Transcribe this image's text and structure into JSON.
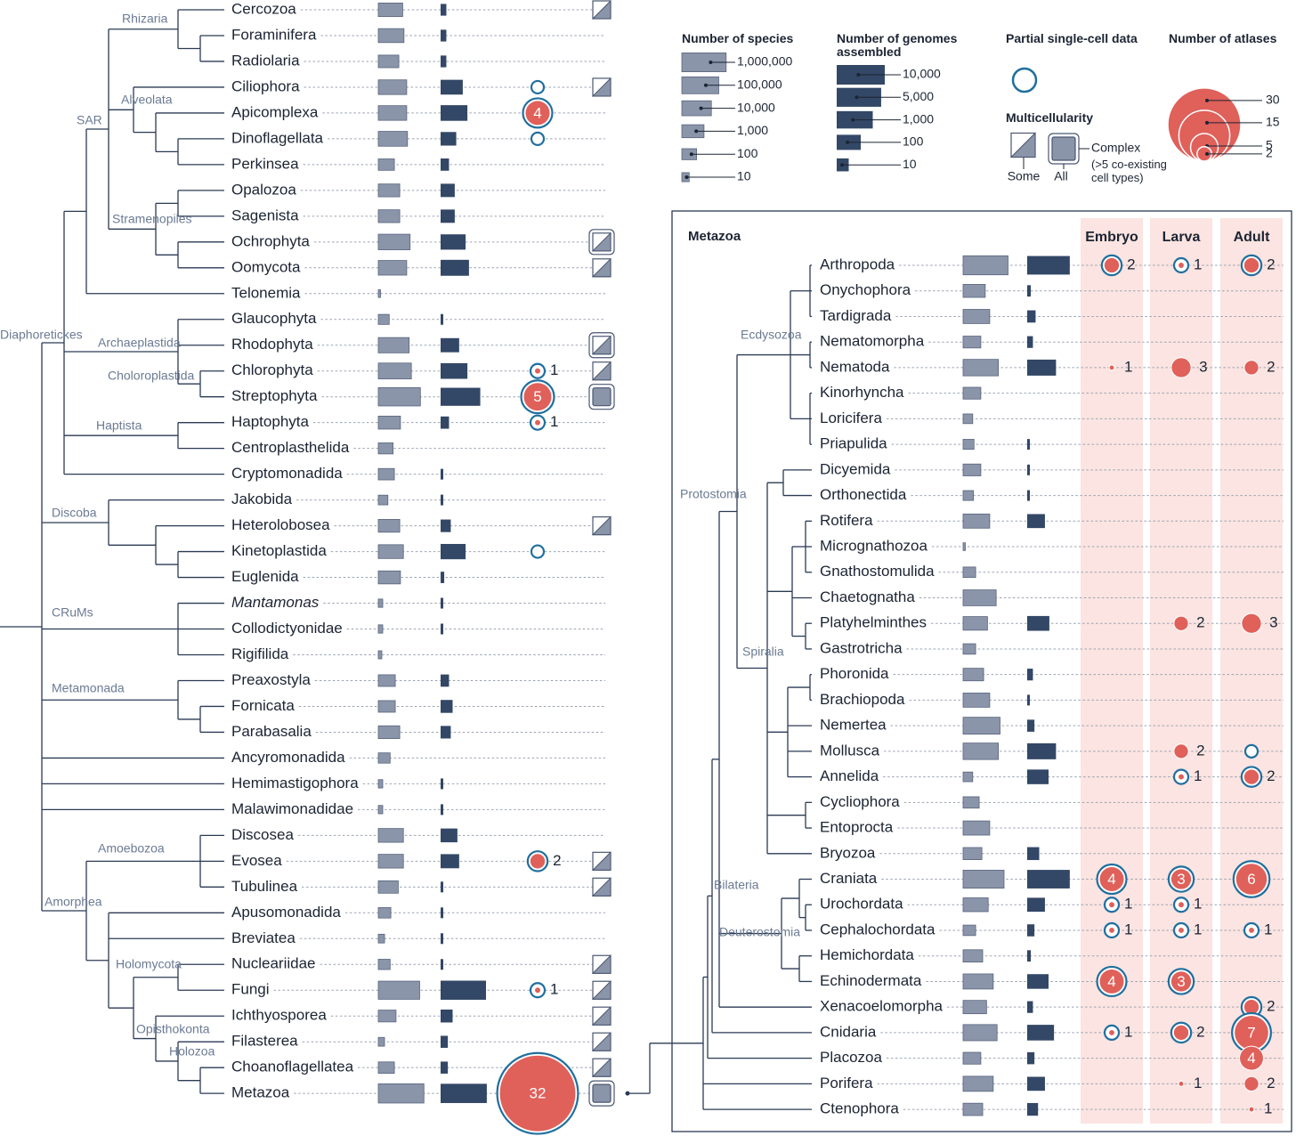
{
  "taxa": [
    {
      "name": "Cercozoa",
      "species": 2000,
      "genomes": 3,
      "multicellularity": "some"
    },
    {
      "name": "Foraminifera",
      "species": 3000,
      "genomes": 3
    },
    {
      "name": "Radiolaria",
      "species": 600,
      "genomes": 3
    },
    {
      "name": "Ciliophora",
      "species": 7000,
      "genomes": 70,
      "partial": true,
      "multicellularity": "some"
    },
    {
      "name": "Apicomplexa",
      "species": 7000,
      "genomes": 170,
      "atlases": 4,
      "partial": true
    },
    {
      "name": "Dinoflagellata",
      "species": 9000,
      "genomes": 20,
      "partial": true
    },
    {
      "name": "Perkinsea",
      "species": 150,
      "genomes": 5
    },
    {
      "name": "Opalozoa",
      "species": 800,
      "genomes": 15
    },
    {
      "name": "Sagenista",
      "species": 800,
      "genomes": 15
    },
    {
      "name": "Ochrophyta",
      "species": 20000,
      "genomes": 120,
      "multicellularity": "some",
      "complex": true
    },
    {
      "name": "Oomycota",
      "species": 7000,
      "genomes": 230,
      "multicellularity": "some"
    },
    {
      "name": "Telonemia",
      "species": 2
    },
    {
      "name": "Glaucophyta",
      "species": 30,
      "genomes": 1
    },
    {
      "name": "Rhodophyta",
      "species": 15000,
      "genomes": 35,
      "multicellularity": "some",
      "complex": true
    },
    {
      "name": "Chlorophyta",
      "species": 30000,
      "genomes": 170,
      "atlases": 1,
      "partial": true,
      "multicellularity": "some"
    },
    {
      "name": "Streptophyta",
      "species": 500000,
      "genomes": 2000,
      "atlases": 5,
      "partial": true,
      "multicellularity": "all",
      "complex": true
    },
    {
      "name": "Haptophyta",
      "species": 1000,
      "genomes": 5,
      "atlases": 1,
      "partial": true
    },
    {
      "name": "Centroplasthelida",
      "species": 100
    },
    {
      "name": "Cryptomonadida",
      "species": 150,
      "genomes": 1
    },
    {
      "name": "Jakobida",
      "species": 20,
      "genomes": 1
    },
    {
      "name": "Heterolobosea",
      "species": 800,
      "genomes": 7,
      "multicellularity": "some"
    },
    {
      "name": "Kinetoplastida",
      "species": 2500,
      "genomes": 120,
      "partial": true
    },
    {
      "name": "Euglenida",
      "species": 1000,
      "genomes": 2
    },
    {
      "name": "Mantamonas",
      "species": 4,
      "genomes": 1,
      "italic": true
    },
    {
      "name": "Collodictyonidae",
      "species": 4,
      "genomes": 1
    },
    {
      "name": "Rigifilida",
      "species": 3
    },
    {
      "name": "Preaxostyla",
      "species": 200,
      "genomes": 5
    },
    {
      "name": "Fornicata",
      "species": 200,
      "genomes": 10
    },
    {
      "name": "Parabasalia",
      "species": 800,
      "genomes": 7
    },
    {
      "name": "Ancyromonadida",
      "species": 40
    },
    {
      "name": "Hemimastigophora",
      "species": 4,
      "genomes": 1
    },
    {
      "name": "Malawimonadidae",
      "species": 4,
      "genomes": 1
    },
    {
      "name": "Discosea",
      "species": 2500,
      "genomes": 25
    },
    {
      "name": "Evosea",
      "species": 2500,
      "genomes": 35,
      "atlases": 2,
      "partial": true,
      "multicellularity": "some"
    },
    {
      "name": "Tubulinea",
      "species": 500,
      "genomes": 1,
      "multicellularity": "some"
    },
    {
      "name": "Apusomonadida",
      "species": 50,
      "genomes": 1
    },
    {
      "name": "Breviatea",
      "species": 7,
      "genomes": 1
    },
    {
      "name": "Nucleariidae",
      "species": 40,
      "genomes": 1,
      "multicellularity": "some"
    },
    {
      "name": "Fungi",
      "species": 400000,
      "genomes": 6000,
      "atlases": 1,
      "partial": true,
      "multicellularity": "some"
    },
    {
      "name": "Ichthyosporea",
      "species": 250,
      "genomes": 10,
      "multicellularity": "some"
    },
    {
      "name": "Filasterea",
      "species": 7,
      "genomes": 4,
      "multicellularity": "some"
    },
    {
      "name": "Choanoflagellatea",
      "species": 150,
      "genomes": 4,
      "multicellularity": "some"
    },
    {
      "name": "Metazoa",
      "species": 1500000,
      "genomes": 7000,
      "atlases": 32,
      "partial": true,
      "multicellularity": "all",
      "complex": true
    }
  ],
  "clades": [
    "Rhizaria",
    "SAR",
    "Alveolata",
    "Stramenopiles",
    "Diaphoretickes",
    "Archaeplastida",
    "Choloroplastida",
    "Haptista",
    "Discoba",
    "CRuMs",
    "Metamonada",
    "Amoebozoa",
    "Amorphea",
    "Holomycota",
    "Opisthokonta",
    "Holozoa"
  ],
  "metazoa": {
    "title": "Metazoa",
    "stages": [
      "Embryo",
      "Larva",
      "Adult"
    ],
    "clades": [
      "Ecdysozoa",
      "Protostomia",
      "Spiralia",
      "Bilateria",
      "Deuterostomia"
    ],
    "phyla": [
      {
        "name": "Arthropoda",
        "species": 1200000,
        "genomes": 3500,
        "atlases": [
          2,
          1,
          2
        ],
        "partial": [
          true,
          true,
          true
        ]
      },
      {
        "name": "Onychophora",
        "species": 1000,
        "genomes": 2
      },
      {
        "name": "Tardigrada",
        "species": 4000,
        "genomes": 5
      },
      {
        "name": "Nematomorpha",
        "species": 250,
        "genomes": 3
      },
      {
        "name": "Nematoda",
        "species": 60000,
        "genomes": 250,
        "atlases": [
          1,
          3,
          2
        ]
      },
      {
        "name": "Kinorhyncha",
        "species": 250
      },
      {
        "name": "Loricifera",
        "species": 20
      },
      {
        "name": "Priapulida",
        "species": 30,
        "genomes": 1
      },
      {
        "name": "Dicyemida",
        "species": 250,
        "genomes": 1
      },
      {
        "name": "Orthonectida",
        "species": 25,
        "genomes": 1
      },
      {
        "name": "Rotifera",
        "species": 4000,
        "genomes": 30
      },
      {
        "name": "Micrognathozoa",
        "species": 2
      },
      {
        "name": "Gnathostomulida",
        "species": 50
      },
      {
        "name": "Chaetognatha",
        "species": 30000
      },
      {
        "name": "Platyhelminthes",
        "species": 2000,
        "genomes": 70,
        "atlases": [
          null,
          2,
          3
        ]
      },
      {
        "name": "Gastrotricha",
        "species": 50
      },
      {
        "name": "Phoronida",
        "species": 600,
        "genomes": 3
      },
      {
        "name": "Brachiopoda",
        "species": 4000,
        "genomes": 1
      },
      {
        "name": "Nemertea",
        "species": 100000,
        "genomes": 4
      },
      {
        "name": "Mollusca",
        "species": 60000,
        "genomes": 250,
        "atlases": [
          null,
          2,
          null
        ],
        "partial": [
          false,
          false,
          true
        ]
      },
      {
        "name": "Annelida",
        "species": 20,
        "genomes": 60,
        "atlases": [
          null,
          1,
          2
        ],
        "partial": [
          false,
          true,
          true
        ]
      },
      {
        "name": "Cycliophora",
        "species": 150
      },
      {
        "name": "Entoprocta",
        "species": 4000
      },
      {
        "name": "Bryozoa",
        "species": 350,
        "genomes": 10
      },
      {
        "name": "Craniata",
        "species": 350000,
        "genomes": 3500,
        "atlases": [
          4,
          3,
          6
        ],
        "partial": [
          true,
          true,
          true
        ]
      },
      {
        "name": "Urochordata",
        "species": 2500,
        "genomes": 30,
        "atlases": [
          1,
          1,
          null
        ],
        "partial": [
          true,
          true,
          false
        ]
      },
      {
        "name": "Cephalochordata",
        "species": 50,
        "genomes": 4,
        "atlases": [
          1,
          1,
          1
        ],
        "partial": [
          true,
          true,
          true
        ]
      },
      {
        "name": "Hemichordata",
        "species": 450,
        "genomes": 2
      },
      {
        "name": "Echinodermata",
        "species": 12000,
        "genomes": 60,
        "atlases": [
          4,
          3,
          null
        ],
        "partial": [
          true,
          true,
          false
        ]
      },
      {
        "name": "Xenacoelomorpha",
        "species": 1500,
        "genomes": 3,
        "atlases": [
          null,
          null,
          2
        ],
        "partial": [
          false,
          false,
          true
        ]
      },
      {
        "name": "Cnidaria",
        "species": 40000,
        "genomes": 170,
        "atlases": [
          1,
          2,
          7
        ],
        "partial": [
          true,
          true,
          true
        ]
      },
      {
        "name": "Placozoa",
        "species": 250,
        "genomes": 4,
        "atlases": [
          null,
          null,
          4
        ]
      },
      {
        "name": "Porifera",
        "species": 12000,
        "genomes": 30,
        "atlases": [
          null,
          1,
          2
        ]
      },
      {
        "name": "Ctenophora",
        "species": 450,
        "genomes": 8,
        "atlases": [
          null,
          null,
          1
        ]
      }
    ]
  },
  "legend": {
    "species": {
      "title": "Number of species",
      "ticks": [
        {
          "value": 1000000,
          "label": "1,000,000"
        },
        {
          "value": 100000,
          "label": "100,000"
        },
        {
          "value": 10000,
          "label": "10,000"
        },
        {
          "value": 1000,
          "label": "1,000"
        },
        100,
        10
      ]
    },
    "genomes": {
      "title": "Number of genomes assembled",
      "ticks": [
        {
          "value": 10000,
          "label": "10,000"
        },
        {
          "value": 5000,
          "label": "5,000"
        },
        {
          "value": 1000,
          "label": "1,000"
        },
        100,
        10
      ]
    },
    "partial": {
      "title": "Partial single-cell data"
    },
    "multicellularity": {
      "title": "Multicellularity",
      "some": "Some",
      "all": "All",
      "complex": "Complex",
      "complex_note": "(>5 co-existing cell types)"
    },
    "atlases": {
      "title": "Number of atlases",
      "ticks": [
        30,
        15,
        5,
        2
      ]
    }
  }
}
